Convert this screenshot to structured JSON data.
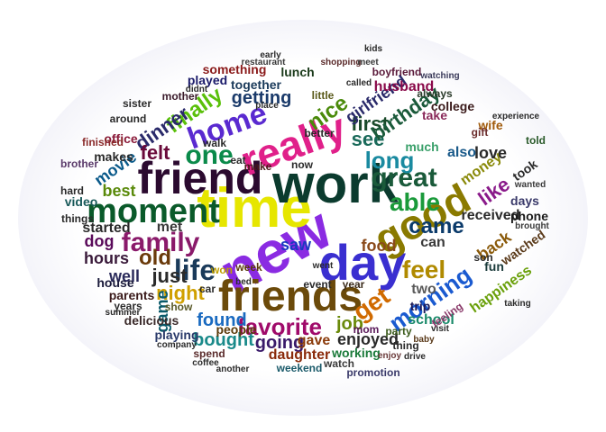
{
  "words": {
    "new": {
      "text": "new",
      "color": "#8a2be2"
    },
    "time": {
      "text": "time",
      "color": "#e6e600"
    },
    "work": {
      "text": "work",
      "color": "#0b3b2e"
    },
    "friend": {
      "text": "friend",
      "color": "#2b0a2f"
    },
    "friends": {
      "text": "friends",
      "color": "#6b4a0a"
    },
    "day": {
      "text": "day",
      "color": "#3a2fd0"
    },
    "good": {
      "text": "good",
      "color": "#8a7a00"
    },
    "really": {
      "text": "really",
      "color": "#e0208a"
    },
    "moment": {
      "text": "moment",
      "color": "#0a5a2a"
    },
    "family": {
      "text": "family",
      "color": "#8a1a6a"
    },
    "life": {
      "text": "life",
      "color": "#1a3a5a"
    },
    "one": {
      "text": "one",
      "color": "#0a8a4a"
    },
    "home": {
      "text": "home",
      "color": "#5a2ad0"
    },
    "great": {
      "text": "great",
      "color": "#1a5a3a"
    },
    "able": {
      "text": "able",
      "color": "#1a9a3a"
    },
    "get": {
      "text": "get",
      "color": "#d06a00"
    },
    "feel": {
      "text": "feel",
      "color": "#b08a00"
    },
    "morning": {
      "text": "morning",
      "color": "#1a5ad0"
    },
    "favorite": {
      "text": "favorite",
      "color": "#a00a6a"
    },
    "long": {
      "text": "long",
      "color": "#1a8aa0"
    },
    "came": {
      "text": "came",
      "color": "#0a3a6a"
    },
    "like": {
      "text": "like",
      "color": "#8a1a8a"
    },
    "see": {
      "text": "see",
      "color": "#1a6a5a"
    },
    "first": {
      "text": "first",
      "color": "#1a4a2a"
    },
    "nice": {
      "text": "nice",
      "color": "#4a8a0a"
    },
    "finally": {
      "text": "finally",
      "color": "#5ac00a"
    },
    "dinner": {
      "text": "dinner",
      "color": "#2a2a6a"
    },
    "felt": {
      "text": "felt",
      "color": "#6a0a3a"
    },
    "old": {
      "text": "old",
      "color": "#6a3a0a"
    },
    "just": {
      "text": "just",
      "color": "#2a2a2a"
    },
    "night": {
      "text": "night",
      "color": "#d0a000"
    },
    "found": {
      "text": "found",
      "color": "#1a6ac0"
    },
    "bought": {
      "text": "bought",
      "color": "#1a8a8a"
    },
    "going": {
      "text": "going",
      "color": "#3a1a6a"
    },
    "job": {
      "text": "job",
      "color": "#6a8a0a"
    },
    "enjoyed": {
      "text": "enjoyed",
      "color": "#2a2a2a"
    },
    "getting": {
      "text": "getting",
      "color": "#1a3a6a"
    },
    "birthday": {
      "text": "birthday",
      "color": "#1a5a3a"
    },
    "girlfriend": {
      "text": "girlfriend",
      "color": "#2a2a6a"
    },
    "received": {
      "text": "received",
      "color": "#2a2a2a"
    },
    "back": {
      "text": "back",
      "color": "#8a5a0a"
    },
    "watched": {
      "text": "watched",
      "color": "#5a3a1a"
    },
    "hours": {
      "text": "hours",
      "color": "#3a1a3a"
    },
    "saw": {
      "text": "saw",
      "color": "#1a3ac0"
    },
    "game": {
      "text": "game",
      "color": "#0a5a6a"
    },
    "school": {
      "text": "school",
      "color": "#1a8a6a"
    },
    "gave": {
      "text": "gave",
      "color": "#8a3a0a"
    },
    "food": {
      "text": "food",
      "color": "#8a4a1a"
    },
    "two": {
      "text": "two",
      "color": "#5a5a5a"
    },
    "can": {
      "text": "can",
      "color": "#3a3a3a"
    },
    "money": {
      "text": "money",
      "color": "#8a8a0a"
    },
    "love": {
      "text": "love",
      "color": "#2a2a2a"
    },
    "movie": {
      "text": "movie",
      "color": "#0a5a8a"
    },
    "best": {
      "text": "best",
      "color": "#5a8a0a"
    },
    "dog": {
      "text": "dog",
      "color": "#5a0a5a"
    },
    "well": {
      "text": "well",
      "color": "#2a2a5a"
    },
    "met": {
      "text": "met",
      "color": "#3a3a3a"
    },
    "started": {
      "text": "started",
      "color": "#2a2a2a"
    },
    "parents": {
      "text": "parents",
      "color": "#3a1a1a"
    },
    "house": {
      "text": "house",
      "color": "#1a1a3a"
    },
    "working": {
      "text": "working",
      "color": "#1a7a3a"
    },
    "daughter": {
      "text": "daughter",
      "color": "#8a2a0a"
    },
    "people": {
      "text": "people",
      "color": "#5a3a0a"
    },
    "trip": {
      "text": "trip",
      "color": "#1a1a5a"
    },
    "fun": {
      "text": "fun",
      "color": "#1a3a3a"
    },
    "happiness": {
      "text": "happiness",
      "color": "#6aa00a"
    },
    "phone": {
      "text": "phone",
      "color": "#1a1a1a"
    },
    "husband": {
      "text": "husband",
      "color": "#8a0a4a"
    },
    "wife": {
      "text": "wife",
      "color": "#a05a0a"
    },
    "take": {
      "text": "take",
      "color": "#8a2a5a"
    },
    "also": {
      "text": "also",
      "color": "#1a5a8a"
    },
    "days": {
      "text": "days",
      "color": "#3a3a6a"
    },
    "took": {
      "text": "took",
      "color": "#2a2a2a"
    },
    "told": {
      "text": "told",
      "color": "#2a5a2a"
    },
    "much": {
      "text": "much",
      "color": "#3aa06a"
    },
    "college": {
      "text": "college",
      "color": "#3a1a1a"
    },
    "always": {
      "text": "always",
      "color": "#2a3a2a"
    },
    "together": {
      "text": "together",
      "color": "#1a3a5a"
    },
    "lunch": {
      "text": "lunch",
      "color": "#1a3a1a"
    },
    "something": {
      "text": "something",
      "color": "#8a1a1a"
    },
    "played": {
      "text": "played",
      "color": "#1a1a6a"
    },
    "office": {
      "text": "office",
      "color": "#8a1a3a"
    },
    "make": {
      "text": "make",
      "color": "#4a1a1a"
    },
    "now": {
      "text": "now",
      "color": "#2a2a2a"
    },
    "video": {
      "text": "video",
      "color": "#1a5a5a"
    },
    "makes": {
      "text": "makes",
      "color": "#2a2a2a"
    },
    "boyfriend": {
      "text": "boyfriend",
      "color": "#5a1a3a"
    },
    "event": {
      "text": "event",
      "color": "#2a2a2a"
    },
    "year": {
      "text": "year",
      "color": "#3a2a1a"
    },
    "playing": {
      "text": "playing",
      "color": "#2a3a6a"
    },
    "show": {
      "text": "show",
      "color": "#5a5a2a"
    },
    "mom": {
      "text": "mom",
      "color": "#5a1a5a"
    },
    "party": {
      "text": "party",
      "color": "#3a5a1a"
    },
    "spend": {
      "text": "spend",
      "color": "#5a2a2a"
    },
    "watch": {
      "text": "watch",
      "color": "#3a3a3a"
    },
    "weekend": {
      "text": "weekend",
      "color": "#1a5a6a"
    },
    "promotion": {
      "text": "promotion",
      "color": "#3a3a6a"
    },
    "enjoy": {
      "text": "enjoy",
      "color": "#6a3a3a"
    },
    "thing": {
      "text": "thing",
      "color": "#2a2a2a"
    },
    "delicious": {
      "text": "delicious",
      "color": "#3a2a2a"
    },
    "years": {
      "text": "years",
      "color": "#2a2a2a"
    },
    "things": {
      "text": "things",
      "color": "#2a2a2a"
    },
    "hard": {
      "text": "hard",
      "color": "#2a2a2a"
    },
    "brother": {
      "text": "brother",
      "color": "#5a3a6a"
    },
    "finished": {
      "text": "finished",
      "color": "#8a2a2a"
    },
    "around": {
      "text": "around",
      "color": "#2a2a2a"
    },
    "mother": {
      "text": "mother",
      "color": "#3a1a2a"
    },
    "sister": {
      "text": "sister",
      "color": "#2a2a2a"
    },
    "didnt": {
      "text": "didnt",
      "color": "#2a2a2a"
    },
    "week": {
      "text": "week",
      "color": "#5a3a0a"
    },
    "little": {
      "text": "little",
      "color": "#5a5a1a"
    },
    "better": {
      "text": "better",
      "color": "#2a2a2a"
    },
    "gift": {
      "text": "gift",
      "color": "#6a2a2a"
    },
    "son": {
      "text": "son",
      "color": "#2a2a2a"
    },
    "watching": {
      "text": "watching",
      "color": "#3a3a5a"
    },
    "wanted": {
      "text": "wanted",
      "color": "#3a3a3a"
    },
    "brought": {
      "text": "brought",
      "color": "#3a3a3a"
    },
    "car": {
      "text": "car",
      "color": "#2a2a2a"
    },
    "walk": {
      "text": "walk",
      "color": "#2a2a2a"
    },
    "eat": {
      "text": "eat",
      "color": "#2a2a2a"
    },
    "won": {
      "text": "won",
      "color": "#c0a000"
    },
    "went": {
      "text": "went",
      "color": "#2a2a2a"
    },
    "bed": {
      "text": "bed",
      "color": "#2a2a2a"
    },
    "place": {
      "text": "place",
      "color": "#2a2a2a"
    },
    "restaurant": {
      "text": "restaurant",
      "color": "#3a3a3a"
    },
    "shopping": {
      "text": "shopping",
      "color": "#5a2a2a"
    },
    "early": {
      "text": "early",
      "color": "#2a2a2a"
    },
    "meet": {
      "text": "meet",
      "color": "#3a3a3a"
    },
    "kids": {
      "text": "kids",
      "color": "#2a2a2a"
    },
    "called": {
      "text": "called",
      "color": "#2a2a2a"
    },
    "feeling": {
      "text": "feeling",
      "color": "#8a3a6a"
    },
    "baby": {
      "text": "baby",
      "color": "#5a3a1a"
    },
    "visit": {
      "text": "visit",
      "color": "#2a2a2a"
    },
    "experience": {
      "text": "experience",
      "color": "#2a2a2a"
    },
    "taking": {
      "text": "taking",
      "color": "#2a2a2a"
    },
    "company": {
      "text": "company",
      "color": "#2a2a2a"
    },
    "coffee": {
      "text": "coffee",
      "color": "#2a2a2a"
    },
    "summer": {
      "text": "summer",
      "color": "#2a2a2a"
    },
    "another": {
      "text": "another",
      "color": "#2a2a2a"
    },
    "drive": {
      "text": "drive",
      "color": "#2a2a2a"
    }
  }
}
